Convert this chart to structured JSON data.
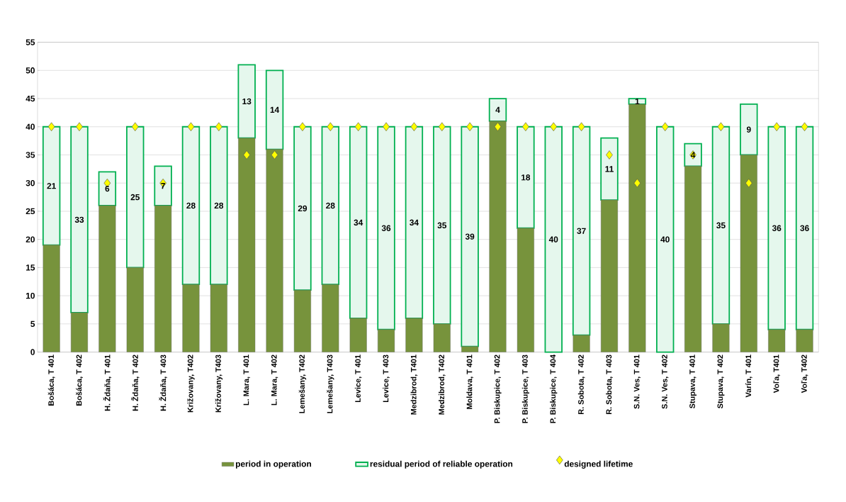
{
  "chart_data": {
    "type": "bar",
    "stacked": true,
    "grid": "y",
    "legend": "bottom",
    "categories": [
      "Bošáca, T 401",
      "Bošáca, T 402",
      "H. Ždaňa, T 401",
      "H. Ždaňa, T 402",
      "H. Ždaňa, T 403",
      "Križovany, T402",
      "Križovany, T403",
      "L. Mara, T 401",
      "L. Mara, T 402",
      "Lemešany, T402",
      "Lemešany, T403",
      "Levice, T 401",
      "Levice, T 403",
      "Medzibrod, T401",
      "Medzibrod, T402",
      "Moldava, T 401",
      "P. Biskupice, T 402",
      "P. Biskupice, T 403",
      "P. Biskupice, T 404",
      "R. Sobota, T 402",
      "R. Sobota, T 403",
      "S.N. Ves, T 401",
      "S.N. Ves, T 402",
      "Stupava, T 401",
      "Stupava, T 402",
      "Varín, T 401",
      "Voľa, T401",
      "Voľa, T402"
    ],
    "ylim": [
      0,
      55
    ],
    "yticks": [
      0,
      5,
      10,
      15,
      20,
      25,
      30,
      35,
      40,
      45,
      50,
      55
    ],
    "series": [
      {
        "name": "period in operation",
        "color": "#77933c",
        "values": [
          19,
          7,
          26,
          15,
          26,
          12,
          12,
          38,
          36,
          11,
          12,
          6,
          4,
          6,
          5,
          1,
          41,
          22,
          0,
          3,
          27,
          44,
          0,
          33,
          5,
          35,
          4,
          4
        ]
      },
      {
        "name": "residual period of reliable operation",
        "color": "#00b050",
        "values": [
          21,
          33,
          6,
          25,
          7,
          28,
          28,
          13,
          14,
          29,
          28,
          34,
          36,
          34,
          35,
          39,
          4,
          18,
          40,
          37,
          11,
          1,
          40,
          4,
          35,
          9,
          36,
          36
        ],
        "value_labels": [
          "21",
          "33",
          "6",
          "25",
          "7",
          "28",
          "28",
          "13",
          "14",
          "29",
          "28",
          "34",
          "36",
          "34",
          "35",
          "39",
          "4",
          "18",
          "40",
          "37",
          "11",
          "1",
          "40",
          "4",
          "35",
          "9",
          "36",
          "36"
        ]
      },
      {
        "name": "designed lifetime",
        "type": "scatter",
        "marker": "diamond",
        "color": "#ffff00",
        "values": [
          40,
          40,
          30,
          40,
          30,
          40,
          40,
          35,
          35,
          40,
          40,
          40,
          40,
          40,
          40,
          40,
          40,
          40,
          40,
          40,
          35,
          30,
          40,
          35,
          40,
          30,
          40,
          40
        ]
      }
    ]
  }
}
